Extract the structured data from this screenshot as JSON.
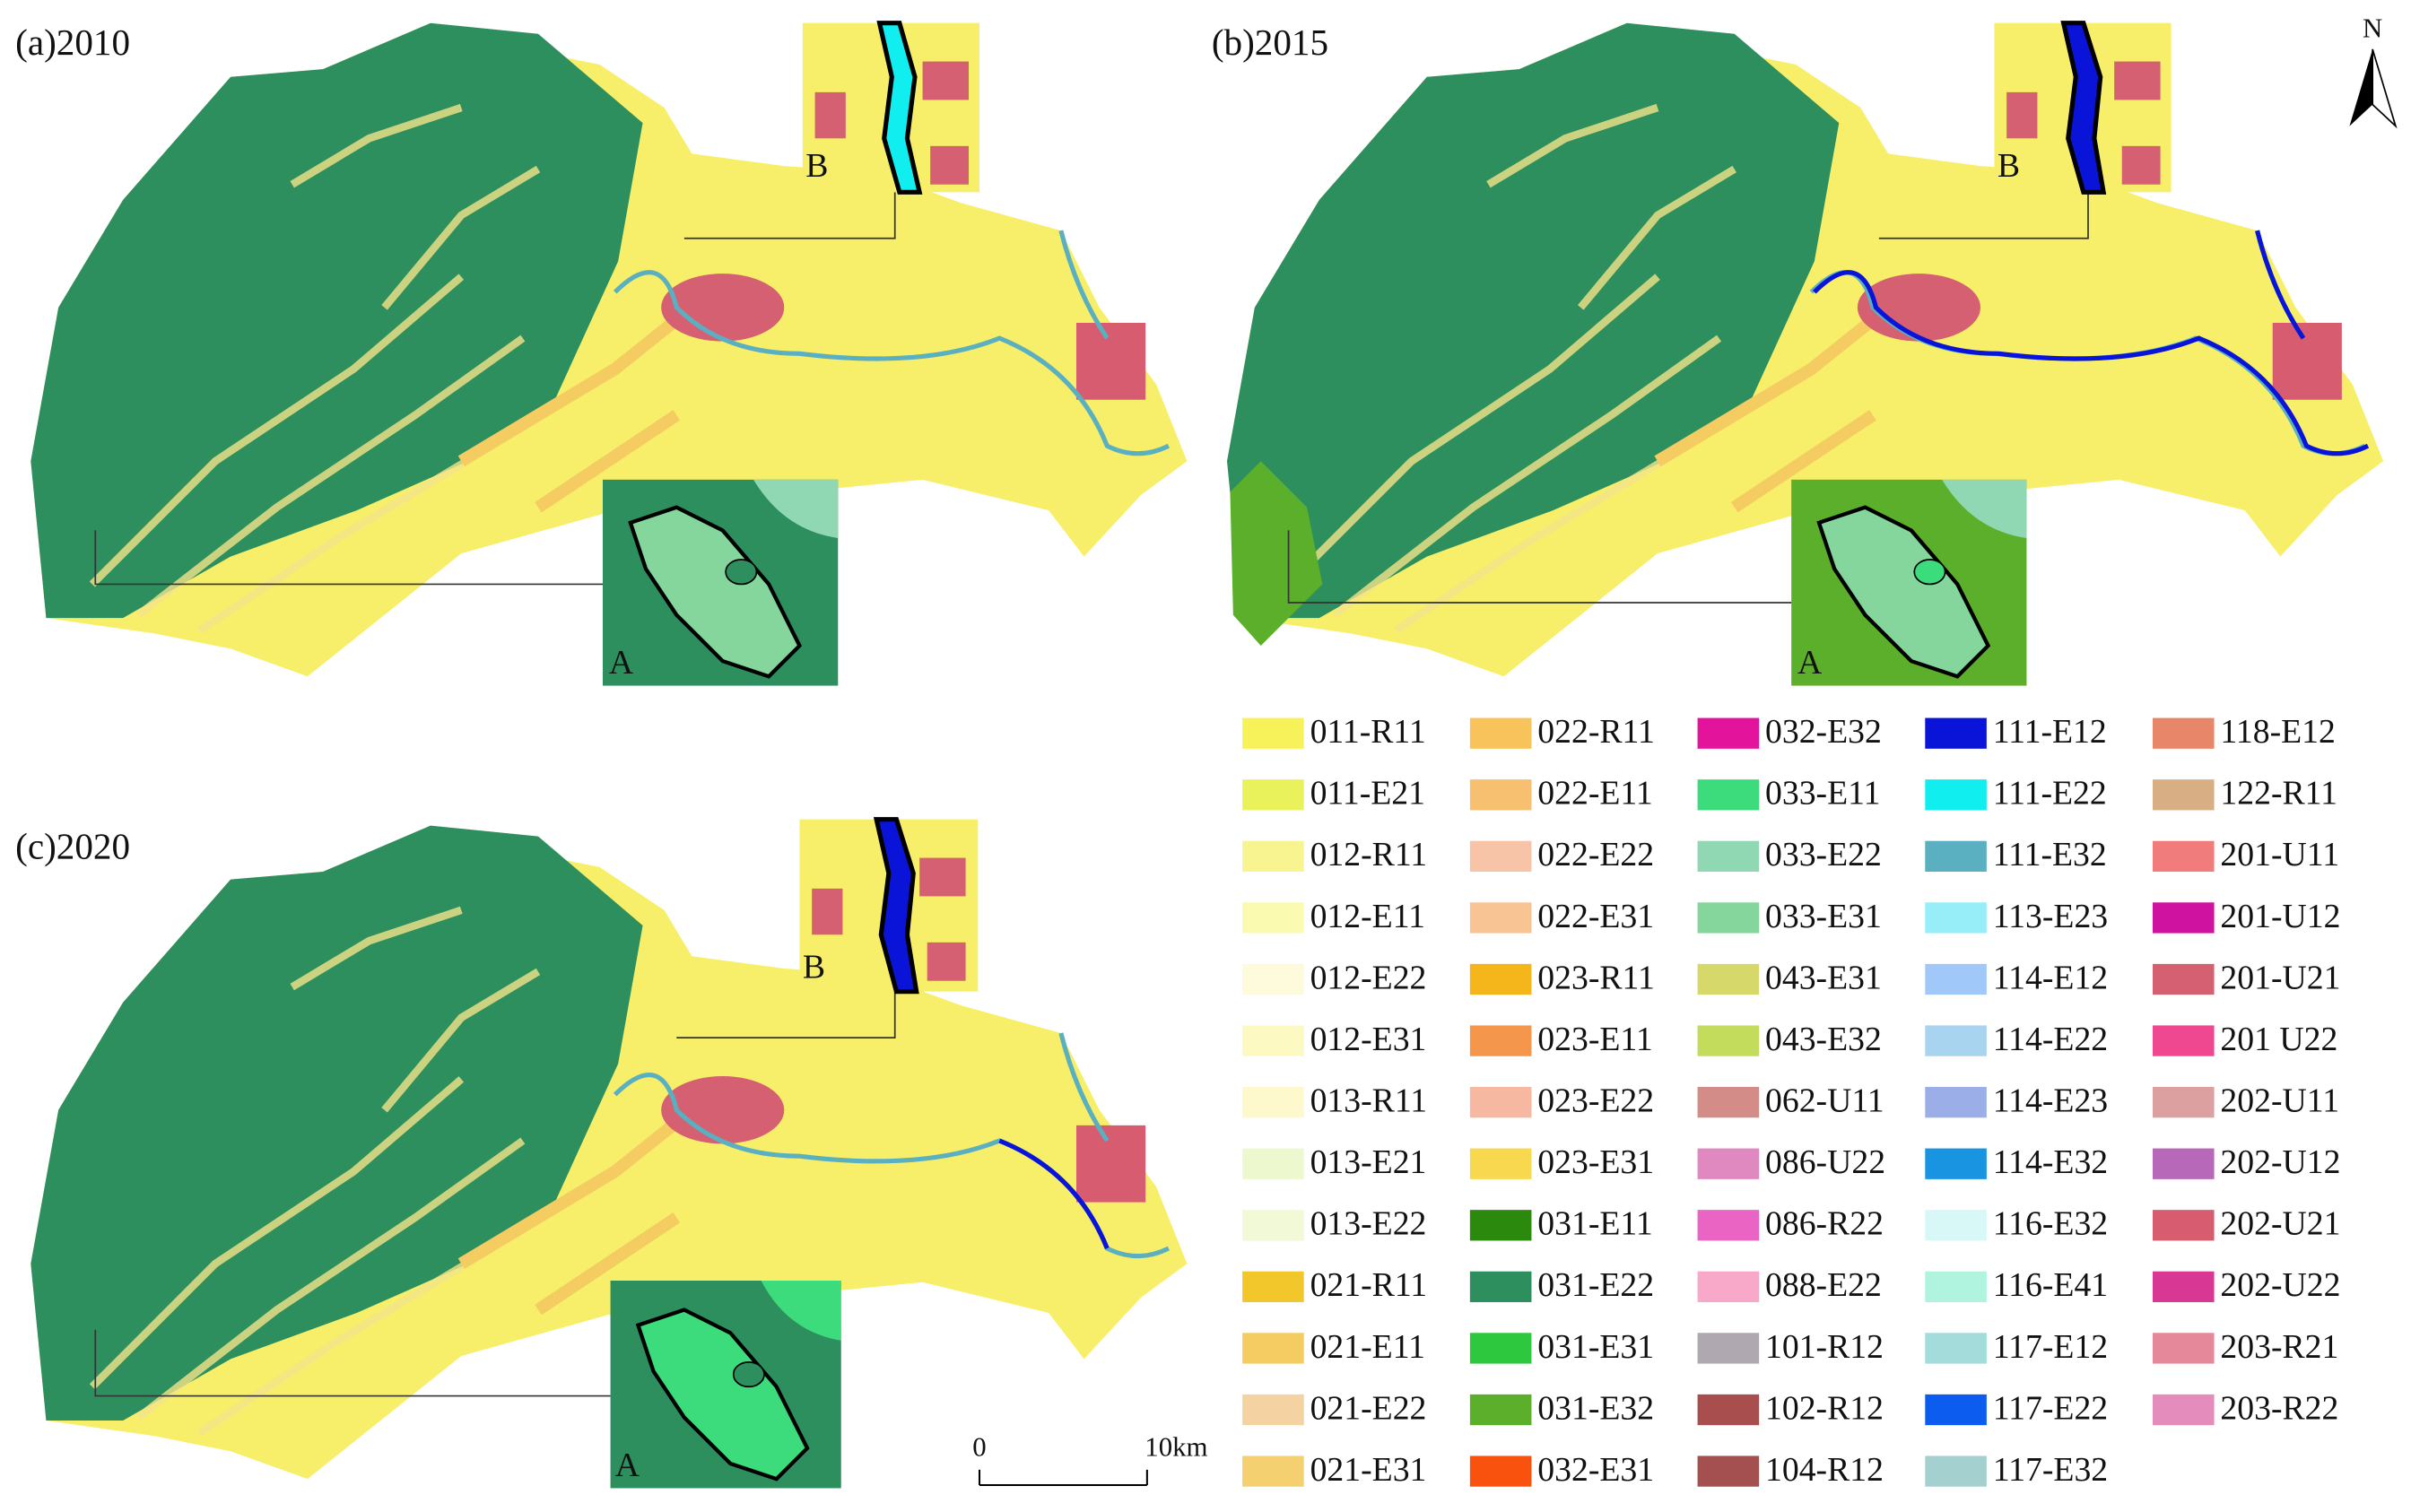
{
  "panels": [
    {
      "label": "(a)2010",
      "inset_a": "A",
      "inset_b": "B"
    },
    {
      "label": "(b)2015",
      "inset_a": "A",
      "inset_b": "B"
    },
    {
      "label": "(c)2020",
      "inset_a": "A",
      "inset_b": "B"
    }
  ],
  "legend": [
    {
      "label": "011-R11",
      "color": "#f7f25a"
    },
    {
      "label": "011-E21",
      "color": "#e9f25a"
    },
    {
      "label": "012-R11",
      "color": "#f8f490"
    },
    {
      "label": "012-E11",
      "color": "#fafbb0"
    },
    {
      "label": "012-E22",
      "color": "#fdfbdc"
    },
    {
      "label": "012-E31",
      "color": "#fcfac2"
    },
    {
      "label": "013-R11",
      "color": "#fdf9cc"
    },
    {
      "label": "013-E21",
      "color": "#eef8cf"
    },
    {
      "label": "013-E22",
      "color": "#f2f9d6"
    },
    {
      "label": "021-R11",
      "color": "#f2c72c"
    },
    {
      "label": "021-E11",
      "color": "#f4cc62"
    },
    {
      "label": "021-E22",
      "color": "#f5d2a2"
    },
    {
      "label": "021-E31",
      "color": "#f4d070"
    },
    {
      "label": "022-R11",
      "color": "#f7c35a"
    },
    {
      "label": "022-E11",
      "color": "#f7c070"
    },
    {
      "label": "022-E22",
      "color": "#f8c4a8"
    },
    {
      "label": "022-E31",
      "color": "#f8c494"
    },
    {
      "label": "023-R11",
      "color": "#f5b61c"
    },
    {
      "label": "023-E11",
      "color": "#f4974c"
    },
    {
      "label": "023-E22",
      "color": "#f6b8a0"
    },
    {
      "label": "023-E31",
      "color": "#f8d84e"
    },
    {
      "label": "031-E11",
      "color": "#2b8a0e"
    },
    {
      "label": "031-E22",
      "color": "#2e8f5e"
    },
    {
      "label": "031-E31",
      "color": "#2ec83e"
    },
    {
      "label": "031-E32",
      "color": "#5caf2a"
    },
    {
      "label": "032-E31",
      "color": "#f8520e"
    },
    {
      "label": "032-E32",
      "color": "#e4139c"
    },
    {
      "label": "033-E11",
      "color": "#3cdc7c"
    },
    {
      "label": "033-E22",
      "color": "#90d8b4"
    },
    {
      "label": "033-E31",
      "color": "#84d69c"
    },
    {
      "label": "043-E31",
      "color": "#d7d86a"
    },
    {
      "label": "043-E32",
      "color": "#c4dc5c"
    },
    {
      "label": "062-U11",
      "color": "#d48c88"
    },
    {
      "label": "086-U22",
      "color": "#e088c0"
    },
    {
      "label": "086-R22",
      "color": "#ea64c4"
    },
    {
      "label": "088-E22",
      "color": "#f8a8c8"
    },
    {
      "label": "101-R12",
      "color": "#b0a8b0"
    },
    {
      "label": "102-R12",
      "color": "#a84e4e"
    },
    {
      "label": "104-R12",
      "color": "#a45050"
    },
    {
      "label": "111-E12",
      "color": "#0a14d8"
    },
    {
      "label": "111-E22",
      "color": "#10eef0"
    },
    {
      "label": "111-E32",
      "color": "#5ab0c0"
    },
    {
      "label": "113-E23",
      "color": "#98eef8"
    },
    {
      "label": "114-E12",
      "color": "#a0c8f8"
    },
    {
      "label": "114-E22",
      "color": "#a8d4f0"
    },
    {
      "label": "114-E23",
      "color": "#9caee8"
    },
    {
      "label": "114-E32",
      "color": "#1894e0"
    },
    {
      "label": "116-E32",
      "color": "#d8f8f8"
    },
    {
      "label": "116-E41",
      "color": "#b0f4e0"
    },
    {
      "label": "117-E12",
      "color": "#a4dcdc"
    },
    {
      "label": "117-E22",
      "color": "#0c5cf0"
    },
    {
      "label": "117-E32",
      "color": "#a4d0d0"
    },
    {
      "label": "118-E12",
      "color": "#e8866a"
    },
    {
      "label": "122-R11",
      "color": "#d8ae84"
    },
    {
      "label": "201-U11",
      "color": "#f07c7c"
    },
    {
      "label": "201-U12",
      "color": "#d012a0"
    },
    {
      "label": "201-U21",
      "color": "#d46072"
    },
    {
      "label": "201 U22",
      "color": "#f04890"
    },
    {
      "label": "202-U11",
      "color": "#dca0a0"
    },
    {
      "label": "202-U12",
      "color": "#b868b8"
    },
    {
      "label": "202-U21",
      "color": "#d85c70"
    },
    {
      "label": "202-U22",
      "color": "#d83894"
    },
    {
      "label": "203-R21",
      "color": "#e4889a"
    },
    {
      "label": "203-R22",
      "color": "#e48cbc"
    }
  ],
  "scale_bar": {
    "start": "0",
    "end": "10km"
  },
  "north": "N"
}
